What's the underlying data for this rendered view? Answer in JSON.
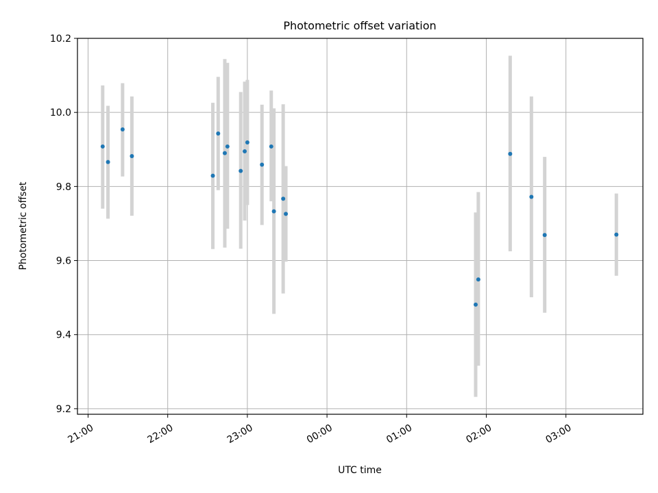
{
  "chart_data": {
    "type": "scatter",
    "title": "Photometric offset variation",
    "xlabel": "UTC time",
    "ylabel": "Photometric offset",
    "x_type": "time",
    "xlim": [
      "20:52",
      "03:58"
    ],
    "ylim": [
      9.185,
      10.2
    ],
    "x_ticks": [
      "21:00",
      "22:00",
      "23:00",
      "00:00",
      "01:00",
      "02:00",
      "03:00"
    ],
    "y_ticks": [
      9.2,
      9.4,
      9.6,
      9.8,
      10.0,
      10.2
    ],
    "y_tick_labels": [
      "9.2",
      "9.4",
      "9.6",
      "9.8",
      "10.0",
      "10.2"
    ],
    "grid": true,
    "colors": {
      "marker": "#1f77b4",
      "errorbar": "#d3d3d3",
      "grid": "#b0b0b0"
    },
    "series": [
      {
        "points": [
          {
            "t": "21:11",
            "y": 9.908,
            "lo": 9.74,
            "hi": 10.073
          },
          {
            "t": "21:15",
            "y": 9.866,
            "lo": 9.713,
            "hi": 10.018
          },
          {
            "t": "21:26",
            "y": 9.954,
            "lo": 9.827,
            "hi": 10.079
          },
          {
            "t": "21:33",
            "y": 9.882,
            "lo": 9.721,
            "hi": 10.043
          },
          {
            "t": "22:34",
            "y": 9.829,
            "lo": 9.631,
            "hi": 10.026
          },
          {
            "t": "22:38",
            "y": 9.943,
            "lo": 9.79,
            "hi": 10.096
          },
          {
            "t": "22:43",
            "y": 9.89,
            "lo": 9.635,
            "hi": 10.144
          },
          {
            "t": "22:45",
            "y": 9.908,
            "lo": 9.686,
            "hi": 10.134
          },
          {
            "t": "22:55",
            "y": 9.842,
            "lo": 9.632,
            "hi": 10.055
          },
          {
            "t": "22:58",
            "y": 9.895,
            "lo": 9.708,
            "hi": 10.083
          },
          {
            "t": "23:00",
            "y": 9.919,
            "lo": 9.75,
            "hi": 10.088
          },
          {
            "t": "23:11",
            "y": 9.859,
            "lo": 9.696,
            "hi": 10.021
          },
          {
            "t": "23:18",
            "y": 9.908,
            "lo": 9.76,
            "hi": 10.059
          },
          {
            "t": "23:20",
            "y": 9.733,
            "lo": 9.456,
            "hi": 10.011
          },
          {
            "t": "23:27",
            "y": 9.767,
            "lo": 9.511,
            "hi": 10.022
          },
          {
            "t": "23:29",
            "y": 9.726,
            "lo": 9.597,
            "hi": 9.855
          },
          {
            "t": "01:52",
            "y": 9.481,
            "lo": 9.232,
            "hi": 9.73
          },
          {
            "t": "01:54",
            "y": 9.549,
            "lo": 9.316,
            "hi": 9.785
          },
          {
            "t": "02:18",
            "y": 9.888,
            "lo": 9.625,
            "hi": 10.153
          },
          {
            "t": "02:34",
            "y": 9.772,
            "lo": 9.501,
            "hi": 10.043
          },
          {
            "t": "02:44",
            "y": 9.669,
            "lo": 9.459,
            "hi": 9.88
          },
          {
            "t": "03:38",
            "y": 9.67,
            "lo": 9.559,
            "hi": 9.781
          }
        ]
      }
    ]
  }
}
